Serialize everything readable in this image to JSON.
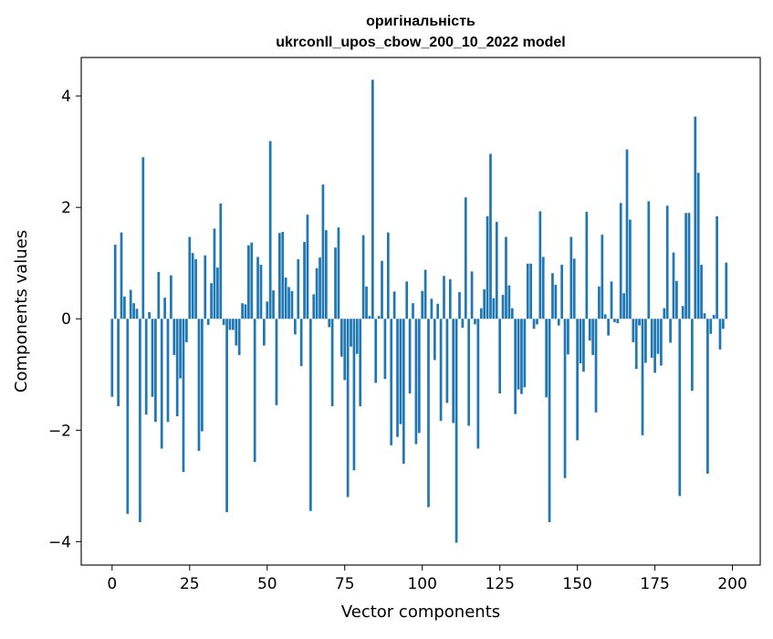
{
  "chart_data": {
    "type": "bar",
    "title_line1": "оригінальність",
    "title_line2": "ukrconll_upos_cbow_200_10_2022 model",
    "xlabel": "Vector components",
    "ylabel": "Components values",
    "xlim": [
      -9.95,
      208.95
    ],
    "ylim": [
      -4.42,
      4.69
    ],
    "xticks": [
      0,
      25,
      50,
      75,
      100,
      125,
      150,
      175,
      200
    ],
    "xtick_labels": [
      "0",
      "25",
      "50",
      "75",
      "100",
      "125",
      "150",
      "175",
      "200"
    ],
    "yticks": [
      -4,
      -2,
      0,
      2,
      4
    ],
    "ytick_labels": [
      "−4",
      "−2",
      "0",
      "2",
      "4"
    ],
    "bar_color": "#1f77b4",
    "grid": false,
    "values": [
      -1.4,
      1.33,
      -1.57,
      1.55,
      0.4,
      -3.5,
      0.52,
      0.28,
      0.18,
      -3.65,
      2.9,
      -1.72,
      0.12,
      -1.4,
      -1.85,
      0.84,
      -2.33,
      0.38,
      -1.85,
      0.78,
      -0.65,
      -1.75,
      -1.07,
      -2.75,
      -0.42,
      1.47,
      1.18,
      1.07,
      -2.37,
      -2.02,
      1.14,
      -0.11,
      0.64,
      1.62,
      0.92,
      2.07,
      -0.11,
      -3.47,
      -0.2,
      -0.2,
      -0.48,
      -0.65,
      0.28,
      0.26,
      1.32,
      1.37,
      -2.57,
      1.11,
      0.97,
      -0.48,
      0.31,
      3.19,
      0.51,
      -1.55,
      1.54,
      1.56,
      0.74,
      0.57,
      0.5,
      -0.28,
      1.07,
      -0.85,
      1.38,
      1.87,
      -3.45,
      0.44,
      0.91,
      1.1,
      2.41,
      1.59,
      -0.15,
      -1.57,
      1.28,
      1.64,
      -0.68,
      -1.1,
      -3.2,
      -0.5,
      -2.72,
      -0.63,
      -1.57,
      1.5,
      0.58,
      0.05,
      4.29,
      -1.15,
      0.05,
      1.04,
      -1.08,
      1.55,
      -2.27,
      0.49,
      -2.12,
      -1.89,
      -2.6,
      0.67,
      -1.34,
      0.28,
      -2.25,
      -2.05,
      0.5,
      0.88,
      -3.38,
      0.36,
      -0.74,
      0.27,
      -1.83,
      0.77,
      -1.51,
      0.71,
      -1.87,
      -4.02,
      0.48,
      -0.16,
      2.18,
      -1.92,
      0.85,
      -0.1,
      -2.33,
      0.19,
      0.53,
      1.84,
      2.96,
      0.37,
      1.74,
      -1.34,
      0.43,
      1.47,
      0.6,
      0.19,
      -1.71,
      -1.27,
      -1.35,
      -1.23,
      0.99,
      0.99,
      -0.18,
      -0.1,
      1.93,
      1.11,
      -1.41,
      -3.65,
      0.82,
      0.61,
      -0.12,
      0.97,
      -2.86,
      -0.64,
      1.47,
      1.08,
      -2.18,
      -0.8,
      -0.95,
      1.92,
      -0.39,
      -0.65,
      -1.68,
      0.58,
      1.51,
      0.08,
      -0.3,
      0.67,
      -0.06,
      -0.08,
      2.08,
      0.46,
      3.04,
      1.78,
      -0.42,
      -0.9,
      -0.12,
      -2.09,
      -0.79,
      2.11,
      -0.7,
      -0.97,
      -0.63,
      -0.84,
      0.19,
      2.03,
      -0.43,
      1.19,
      0.68,
      -3.18,
      0.23,
      1.9,
      1.9,
      -1.29,
      3.63,
      2.62,
      0.97,
      0.1,
      -2.78,
      -0.27,
      0.07,
      1.84,
      -0.55,
      -0.18,
      1.01
    ]
  }
}
